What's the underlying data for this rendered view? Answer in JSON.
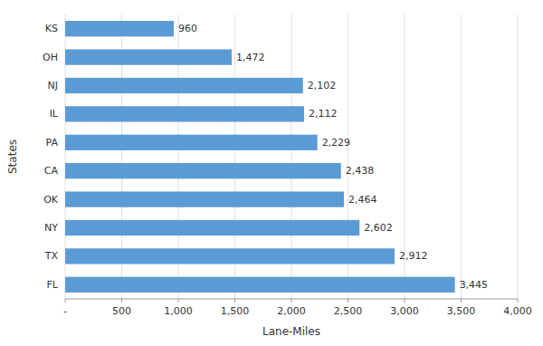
{
  "chart_data": {
    "type": "bar",
    "orientation": "horizontal",
    "categories": [
      "FL",
      "TX",
      "NY",
      "OK",
      "CA",
      "PA",
      "IL",
      "NJ",
      "OH",
      "KS"
    ],
    "values": [
      3445,
      2912,
      2602,
      2464,
      2438,
      2229,
      2112,
      2102,
      1472,
      960
    ],
    "value_labels": [
      "3,445",
      "2,912",
      "2,602",
      "2,464",
      "2,438",
      "2,229",
      "2,112",
      "2,102",
      "1,472",
      "960"
    ],
    "data_labels": true,
    "color": "#5B9BD5",
    "xlabel": "Lane-Miles",
    "ylabel": "States",
    "xlim": [
      0,
      4000
    ],
    "xticks": [
      {
        "value": 0,
        "label": "-"
      },
      500,
      {
        "value": 1000,
        "label": "1,000"
      },
      {
        "value": 1500,
        "label": "1,500"
      },
      {
        "value": 2000,
        "label": "2,000"
      },
      {
        "value": 2500,
        "label": "2,500"
      },
      {
        "value": 3000,
        "label": "3,000"
      },
      {
        "value": 3500,
        "label": "3,500"
      },
      {
        "value": 4000,
        "label": "4,000"
      }
    ],
    "grid": true
  }
}
